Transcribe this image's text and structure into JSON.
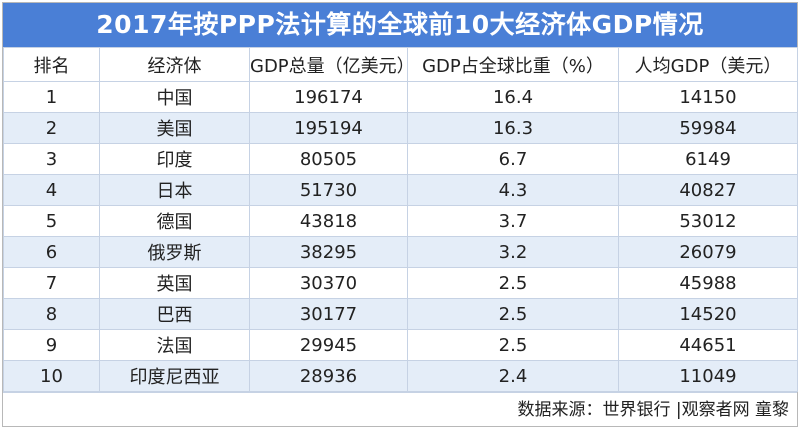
{
  "title": "2017年按PPP法计算的全球前10大经济体GDP情况",
  "headers": [
    "排名",
    "经济体",
    "GDP总量（亿美元）",
    "GDP占全球比重（%）",
    "人均GDP（美元）"
  ],
  "rows": [
    [
      "1",
      "中国",
      "196174",
      "16.4",
      "14150"
    ],
    [
      "2",
      "美国",
      "195194",
      "16.3",
      "59984"
    ],
    [
      "3",
      "印度",
      "80505",
      "6.7",
      "6149"
    ],
    [
      "4",
      "日本",
      "51730",
      "4.3",
      "40827"
    ],
    [
      "5",
      "德国",
      "43818",
      "3.7",
      "53012"
    ],
    [
      "6",
      "俄罗斯",
      "38295",
      "3.2",
      "26079"
    ],
    [
      "7",
      "英国",
      "30370",
      "2.5",
      "45988"
    ],
    [
      "8",
      "巴西",
      "30177",
      "2.5",
      "14520"
    ],
    [
      "9",
      "法国",
      "29945",
      "2.5",
      "44651"
    ],
    [
      "10",
      "印度尼西亚",
      "28936",
      "2.4",
      "11049"
    ]
  ],
  "source": "数据来源：世界银行  |观察者网 童黎",
  "colors": {
    "title_bg": "#4a7fd6",
    "stripe": "#e4edf8",
    "border": "#c6d2e4"
  }
}
